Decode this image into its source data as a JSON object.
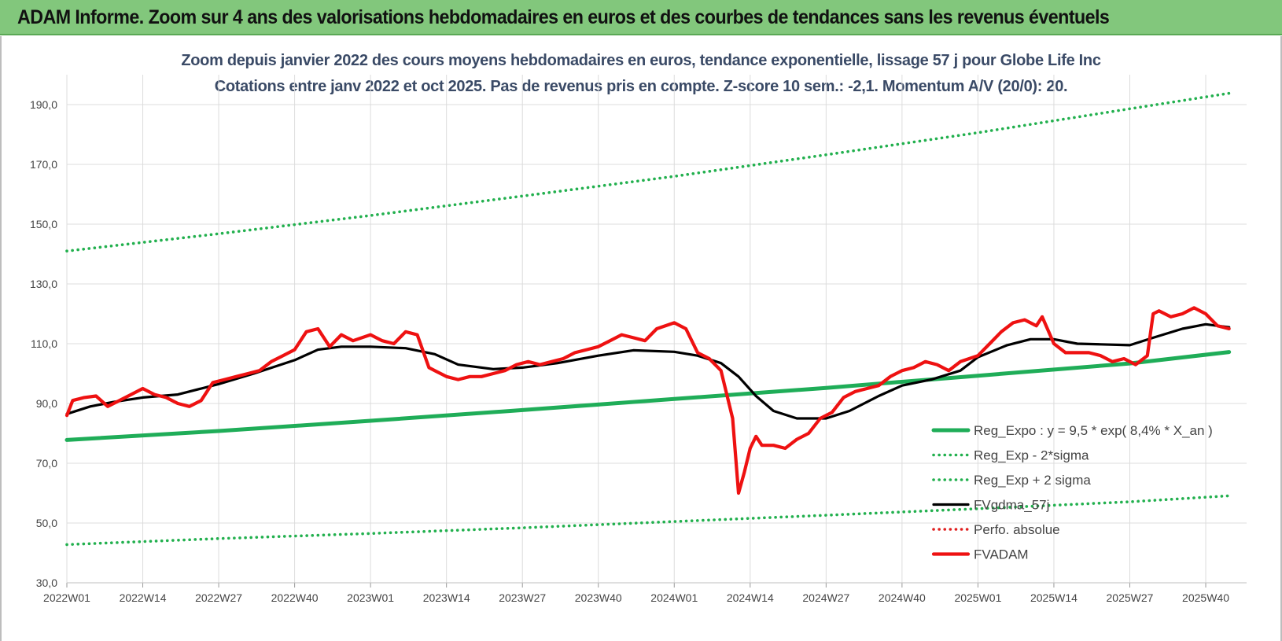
{
  "header": {
    "title": "ADAM Informe. Zoom sur 4 ans des valorisations hebdomadaires en euros et des courbes de tendances sans les revenus éventuels"
  },
  "chart_data": {
    "type": "line",
    "title": "Zoom depuis janvier 2022 des cours moyens hebdomadaires en euros, tendance exponentielle, lissage 57 j pour Globe Life Inc",
    "subtitle": "Cotations entre janv 2022 et oct 2025. Pas de revenus pris en compte. Z-score 10 sem.: -2,1. Momentum A/V (20/0): 20.",
    "y_ticks": [
      "30,0",
      "50,0",
      "70,0",
      "90,0",
      "110,0",
      "130,0",
      "150,0",
      "170,0",
      "190,0"
    ],
    "ylim": [
      30,
      200
    ],
    "x_ticks": [
      "2022W01",
      "2022W14",
      "2022W27",
      "2022W40",
      "2023W01",
      "2023W14",
      "2023W27",
      "2023W40",
      "2024W01",
      "2024W14",
      "2024W27",
      "2024W40",
      "2025W01",
      "2025W14",
      "2025W27",
      "2025W40"
    ],
    "grid": true,
    "legend_position": "right",
    "colors": {
      "trend": "#1fad58",
      "band": "#22b04e",
      "smooth": "#000000",
      "perf": "#e02020",
      "price": "#ee1111"
    },
    "series": [
      {
        "name": "Reg_Expo : y = 9,5 * exp( 8,4% *  X_an )",
        "style": "solid-thick",
        "color": "#1fad58",
        "x": [
          "2022W01",
          "2022W27",
          "2023W01",
          "2023W27",
          "2024W01",
          "2024W27",
          "2025W01",
          "2025W27",
          "2025W44"
        ],
        "values": [
          77.8,
          80.8,
          84.2,
          87.8,
          91.5,
          95.2,
          99.3,
          103.4,
          107.2
        ]
      },
      {
        "name": "Reg_Exp - 2*sigma",
        "style": "dotted",
        "color": "#22b04e",
        "x": [
          "2022W01",
          "2022W27",
          "2023W01",
          "2023W27",
          "2024W01",
          "2024W27",
          "2025W01",
          "2025W27",
          "2025W44"
        ],
        "values": [
          42.8,
          44.8,
          46.5,
          48.4,
          50.5,
          52.6,
          54.8,
          57.1,
          59.1
        ]
      },
      {
        "name": "Reg_Exp + 2 sigma",
        "style": "dotted",
        "color": "#22b04e",
        "x": [
          "2022W01",
          "2022W27",
          "2023W01",
          "2023W27",
          "2024W01",
          "2024W27",
          "2025W01",
          "2025W27",
          "2025W44"
        ],
        "values": [
          141.0,
          146.8,
          152.9,
          159.4,
          166.0,
          173.2,
          180.6,
          188.6,
          193.8
        ]
      },
      {
        "name": "FVgdma_57j",
        "style": "solid",
        "color": "#000000",
        "x": [
          "2022W01",
          "2022W05",
          "2022W09",
          "2022W14",
          "2022W20",
          "2022W27",
          "2022W33",
          "2022W40",
          "2022W44",
          "2022W48",
          "2023W01",
          "2023W07",
          "2023W12",
          "2023W16",
          "2023W22",
          "2023W27",
          "2023W33",
          "2023W40",
          "2023W46",
          "2024W01",
          "2024W05",
          "2024W09",
          "2024W12",
          "2024W15",
          "2024W18",
          "2024W22",
          "2024W27",
          "2024W31",
          "2024W36",
          "2024W40",
          "2024W45",
          "2024W50",
          "2025W01",
          "2025W06",
          "2025W10",
          "2025W14",
          "2025W18",
          "2025W22",
          "2025W27",
          "2025W31",
          "2025W36",
          "2025W40",
          "2025W44"
        ],
        "values": [
          86.5,
          89.0,
          90.5,
          92.0,
          93.0,
          96.5,
          100.0,
          104.5,
          108.0,
          109.0,
          109.0,
          108.5,
          106.5,
          103.0,
          101.5,
          102.0,
          103.5,
          106.0,
          107.8,
          107.3,
          106.0,
          103.5,
          99.0,
          92.5,
          87.5,
          85.0,
          85.0,
          87.5,
          92.5,
          96.0,
          98.0,
          101.0,
          105.5,
          109.5,
          111.5,
          111.5,
          110.0,
          109.8,
          109.5,
          112.0,
          115.0,
          116.5,
          115.5
        ]
      },
      {
        "name": "Perfo. absolue",
        "style": "dotted",
        "color": "#e02020",
        "x": [],
        "values": []
      },
      {
        "name": "FVADAM",
        "style": "solid-thick",
        "color": "#ee1111",
        "x": [
          "2022W01",
          "2022W02",
          "2022W04",
          "2022W06",
          "2022W08",
          "2022W10",
          "2022W12",
          "2022W14",
          "2022W16",
          "2022W18",
          "2022W20",
          "2022W22",
          "2022W24",
          "2022W26",
          "2022W28",
          "2022W30",
          "2022W32",
          "2022W34",
          "2022W36",
          "2022W38",
          "2022W40",
          "2022W42",
          "2022W44",
          "2022W46",
          "2022W48",
          "2022W50",
          "2023W01",
          "2023W03",
          "2023W05",
          "2023W07",
          "2023W09",
          "2023W11",
          "2023W12",
          "2023W14",
          "2023W16",
          "2023W18",
          "2023W20",
          "2023W22",
          "2023W24",
          "2023W26",
          "2023W28",
          "2023W30",
          "2023W32",
          "2023W34",
          "2023W36",
          "2023W38",
          "2023W40",
          "2023W42",
          "2023W44",
          "2023W46",
          "2023W48",
          "2023W50",
          "2024W01",
          "2024W03",
          "2024W05",
          "2024W07",
          "2024W09",
          "2024W11",
          "2024W12",
          "2024W13",
          "2024W14",
          "2024W15",
          "2024W16",
          "2024W18",
          "2024W20",
          "2024W22",
          "2024W24",
          "2024W26",
          "2024W28",
          "2024W30",
          "2024W32",
          "2024W34",
          "2024W36",
          "2024W38",
          "2024W40",
          "2024W42",
          "2024W44",
          "2024W46",
          "2024W48",
          "2024W50",
          "2025W01",
          "2025W03",
          "2025W05",
          "2025W07",
          "2025W09",
          "2025W11",
          "2025W12",
          "2025W14",
          "2025W16",
          "2025W18",
          "2025W20",
          "2025W22",
          "2025W24",
          "2025W26",
          "2025W28",
          "2025W30",
          "2025W31",
          "2025W32",
          "2025W34",
          "2025W36",
          "2025W38",
          "2025W40",
          "2025W42",
          "2025W44"
        ],
        "values": [
          86,
          91,
          92,
          92.5,
          89,
          91,
          93,
          95,
          93,
          92,
          90,
          89,
          91,
          97,
          98,
          99,
          100,
          101,
          104,
          106,
          108,
          114,
          115,
          109,
          113,
          111,
          113,
          111,
          110,
          114,
          113,
          102,
          101,
          99,
          98,
          99,
          99,
          100,
          101,
          103,
          104,
          103,
          104,
          105,
          107,
          108,
          109,
          111,
          113,
          112,
          111,
          115,
          117,
          115,
          107,
          105,
          101,
          85,
          60,
          67,
          75,
          79,
          76,
          76,
          75,
          78,
          80,
          85,
          87,
          92,
          94,
          95,
          96,
          99,
          101,
          102,
          104,
          103,
          101,
          104,
          106,
          110,
          114,
          117,
          118,
          116,
          119,
          110,
          107,
          107,
          107,
          106,
          104,
          105,
          103,
          106,
          120,
          121,
          119,
          120,
          122,
          120,
          116,
          115
        ]
      }
    ]
  }
}
